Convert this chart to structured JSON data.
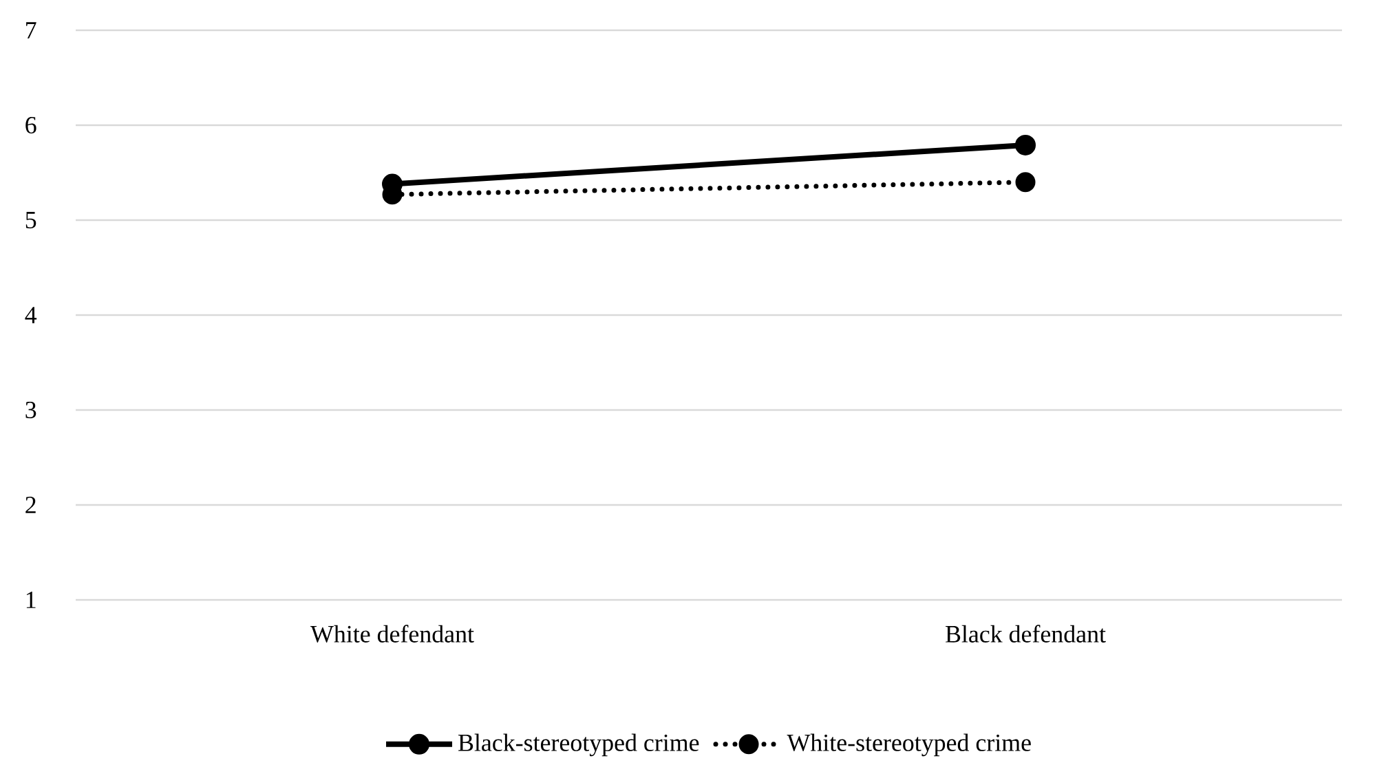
{
  "chart_data": {
    "type": "line",
    "categories": [
      "White defendant",
      "Black defendant"
    ],
    "series": [
      {
        "name": "Black-stereotyped crime",
        "color": "#000000",
        "values": [
          5.38,
          5.79
        ],
        "line_style": "solid"
      },
      {
        "name": "White-stereotyped crime",
        "color": "#000000",
        "values": [
          5.27,
          5.4
        ],
        "line_style": "dotted"
      }
    ],
    "ylim": [
      1,
      7
    ],
    "yticks": [
      1,
      2,
      3,
      4,
      5,
      6,
      7
    ],
    "grid": "y",
    "legend": "bottom",
    "marker": "circle"
  }
}
